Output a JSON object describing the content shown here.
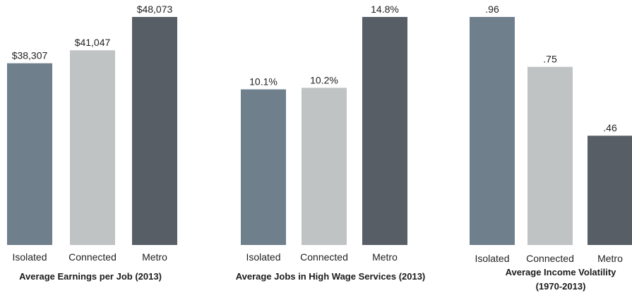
{
  "chart_data": [
    {
      "type": "bar",
      "title": "Average Earnings per Job (2013)",
      "categories": [
        "Isolated",
        "Connected",
        "Metro"
      ],
      "values": [
        38307,
        41047,
        48073
      ],
      "value_labels": [
        "$38,307",
        "$41,047",
        "$48,073"
      ],
      "colors": [
        "#6f7f8c",
        "#bfc3c4",
        "#585e66"
      ],
      "ylim": [
        0,
        48073
      ],
      "grid": false
    },
    {
      "type": "bar",
      "title": "Average Jobs in High Wage Services (2013)",
      "categories": [
        "Isolated",
        "Connected",
        "Metro"
      ],
      "values": [
        10.1,
        10.2,
        14.8
      ],
      "value_labels": [
        "10.1%",
        "10.2%",
        "14.8%"
      ],
      "colors": [
        "#6f7f8c",
        "#bfc3c4",
        "#585e66"
      ],
      "ylim": [
        0,
        14.8
      ],
      "grid": false
    },
    {
      "type": "bar",
      "title": "Average Income Volatility",
      "subtitle": "(1970-2013)",
      "categories": [
        "Isolated",
        "Connected",
        "Metro"
      ],
      "values": [
        0.96,
        0.75,
        0.46
      ],
      "value_labels": [
        ".96",
        ".75",
        ".46"
      ],
      "colors": [
        "#6f7f8c",
        "#bfc3c4",
        "#585e66"
      ],
      "ylim": [
        0,
        0.96
      ],
      "grid": false
    }
  ]
}
